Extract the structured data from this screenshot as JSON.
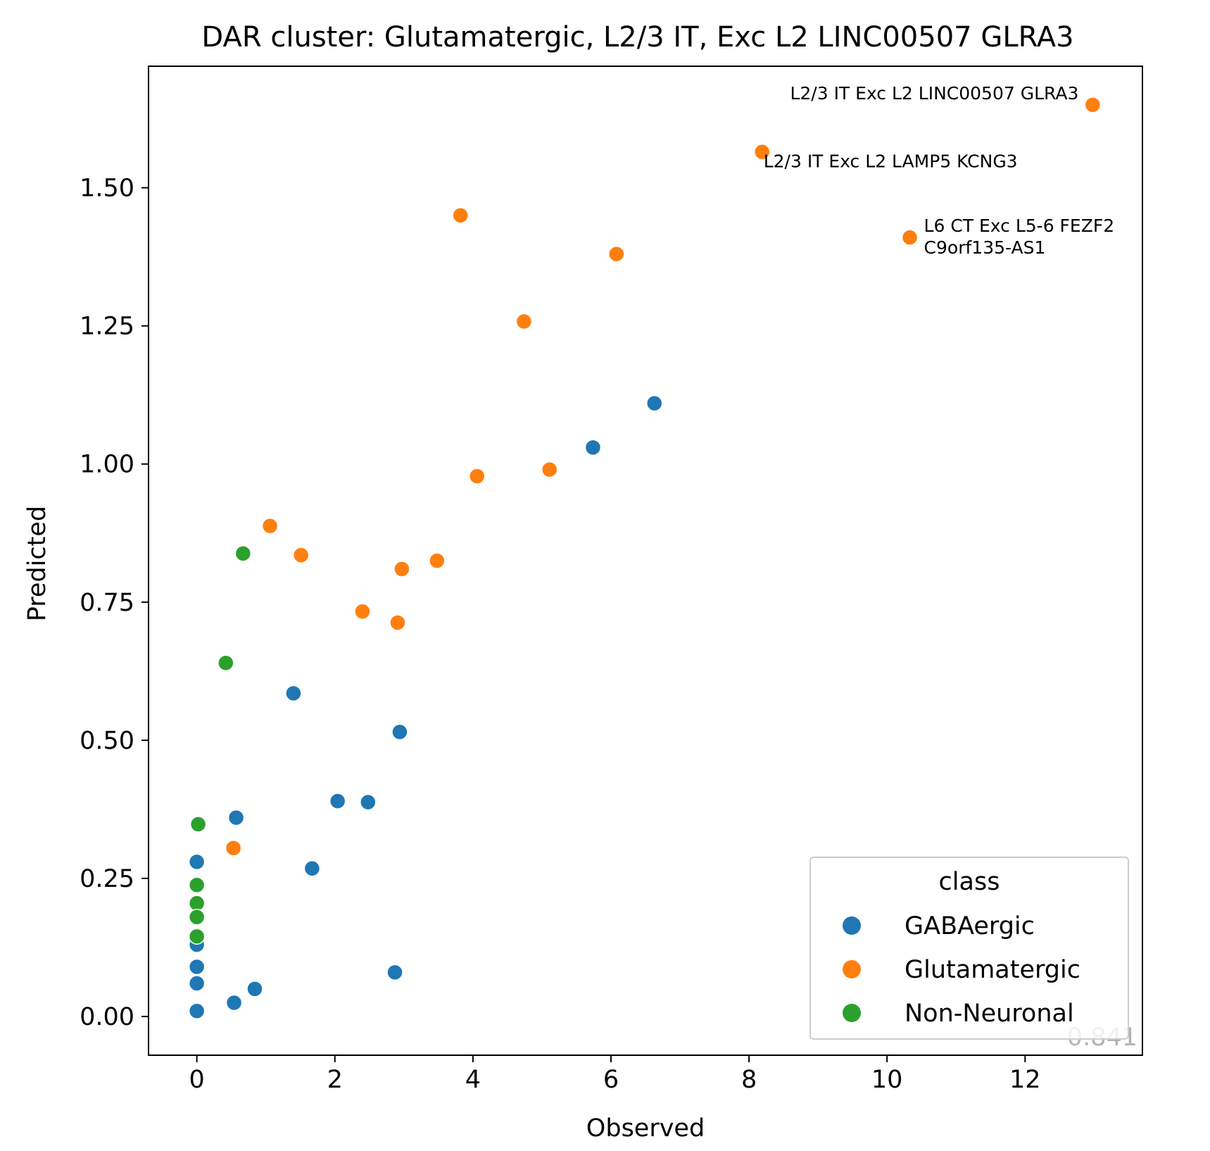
{
  "chart_data": {
    "type": "scatter",
    "title": "DAR cluster: Glutamatergic, L2/3 IT, Exc L2 LINC00507 GLRA3",
    "xlabel": "Observed",
    "ylabel": "Predicted",
    "xlim": [
      -0.7,
      13.7
    ],
    "ylim": [
      -0.07,
      1.72
    ],
    "xticks": [
      0,
      2,
      4,
      6,
      8,
      10,
      12
    ],
    "yticks": [
      0.0,
      0.25,
      0.5,
      0.75,
      1.0,
      1.25,
      1.5
    ],
    "ytick_labels": [
      "0.00",
      "0.25",
      "0.50",
      "0.75",
      "1.00",
      "1.25",
      "1.50"
    ],
    "grid": false,
    "legend": {
      "title": "class",
      "placement": "lower-right",
      "entries": [
        "GABAergic",
        "Glutamatergic",
        "Non-Neuronal"
      ]
    },
    "corner_text": "0.841",
    "series": [
      {
        "name": "GABAergic",
        "color": "#1f77b4",
        "x": [
          6.63,
          5.74,
          1.4,
          2.94,
          2.04,
          2.48,
          0.57,
          0.0,
          1.67,
          0.0,
          0.0,
          0.0,
          0.0,
          2.87,
          0.84,
          0.54
        ],
        "y": [
          1.11,
          1.03,
          0.585,
          0.515,
          0.39,
          0.388,
          0.36,
          0.28,
          0.268,
          0.13,
          0.09,
          0.06,
          0.01,
          0.08,
          0.05,
          0.025
        ]
      },
      {
        "name": "Glutamatergic",
        "color": "#ff7f0e",
        "x": [
          12.98,
          8.19,
          10.33,
          3.82,
          6.08,
          4.74,
          4.06,
          5.11,
          1.06,
          1.51,
          2.97,
          3.48,
          2.4,
          2.91,
          0.53
        ],
        "y": [
          1.65,
          1.565,
          1.41,
          1.45,
          1.38,
          1.258,
          0.978,
          0.99,
          0.888,
          0.835,
          0.81,
          0.825,
          0.733,
          0.713,
          0.305
        ]
      },
      {
        "name": "Non-Neuronal",
        "color": "#2ca02c",
        "x": [
          0.67,
          0.42,
          0.02,
          0.0,
          0.0,
          0.0,
          0.0
        ],
        "y": [
          0.838,
          0.64,
          0.348,
          0.238,
          0.205,
          0.18,
          0.145
        ]
      }
    ],
    "annotations": [
      {
        "lines": [
          "L2/3 IT Exc L2 LINC00507 GLRA3"
        ],
        "x": 12.98,
        "y": 1.65,
        "anchor": "end",
        "dx": -20,
        "dy": -8
      },
      {
        "lines": [
          "L2/3 IT Exc L2 LAMP5 KCNG3"
        ],
        "x": 8.19,
        "y": 1.565,
        "anchor": "start",
        "dx": 2,
        "dy": 22
      },
      {
        "lines": [
          "L6 CT Exc L5-6 FEZF2",
          "C9orf135-AS1"
        ],
        "x": 10.33,
        "y": 1.41,
        "anchor": "start",
        "dx": 20,
        "dy": -8
      }
    ]
  }
}
